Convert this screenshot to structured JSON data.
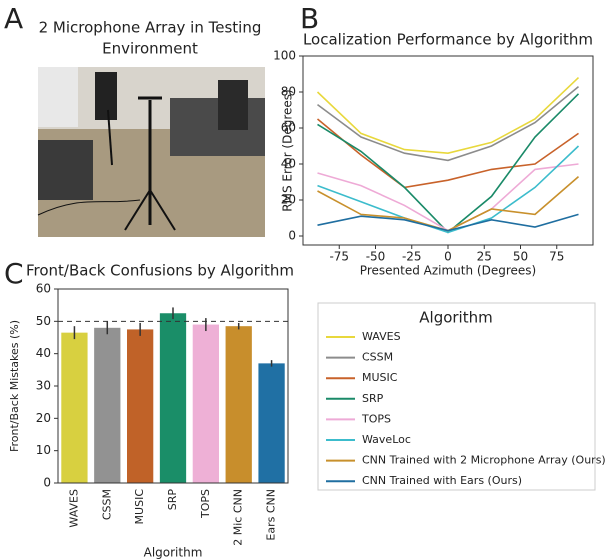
{
  "panel_labels": [
    "A",
    "B",
    "C"
  ],
  "photo_caption": [
    "2 Microphone Array in Testing",
    "Environment"
  ],
  "chart_data": [
    {
      "type": "line",
      "title": "Localization Performance by Algorithm",
      "x_label": "Presented Azimuth (Degrees)",
      "y_label": "RMS Error (Degrees)",
      "x": [
        -90,
        -60,
        -30,
        0,
        30,
        60,
        90
      ],
      "xlim": [
        -100,
        100
      ],
      "xticks": [
        -75,
        -50,
        -25,
        0,
        25,
        50,
        75
      ],
      "ylim": [
        -5,
        100
      ],
      "yticks": [
        0,
        20,
        40,
        60,
        80,
        100
      ],
      "legend_title": "Algorithm",
      "series": [
        {
          "name": "WAVES",
          "color": "#e8d83c",
          "values": [
            80,
            57,
            48,
            46,
            52,
            65,
            88
          ]
        },
        {
          "name": "CSSM",
          "color": "#8c8c8c",
          "values": [
            73,
            55,
            46,
            42,
            50,
            63,
            83
          ]
        },
        {
          "name": "MUSIC",
          "color": "#c8622a",
          "values": [
            65,
            45,
            27,
            31,
            37,
            40,
            57
          ]
        },
        {
          "name": "SRP",
          "color": "#1a8a68",
          "values": [
            62,
            47,
            27,
            2,
            22,
            55,
            79
          ]
        },
        {
          "name": "TOPS",
          "color": "#eeaad6",
          "values": [
            35,
            28,
            17,
            3,
            15,
            37,
            40
          ]
        },
        {
          "name": "WaveLoc",
          "color": "#3cbccc",
          "values": [
            28,
            19,
            10,
            2,
            10,
            27,
            50
          ]
        },
        {
          "name": "CNN Trained with 2 Microphone Array (Ours)",
          "color": "#c8902c",
          "values": [
            25,
            12,
            10,
            3,
            15,
            12,
            33
          ]
        },
        {
          "name": "CNN Trained with Ears (Ours)",
          "color": "#1f6ea0",
          "values": [
            6,
            11,
            9,
            3,
            9,
            5,
            12
          ]
        }
      ]
    },
    {
      "type": "bar",
      "title": "Front/Back Confusions by Algorithm",
      "x_label": "Algorithm",
      "y_label": "Front/Back Mistakes (%)",
      "categories": [
        "WAVES",
        "CSSM",
        "MUSIC",
        "SRP",
        "TOPS",
        "2 Mic CNN",
        "Ears CNN"
      ],
      "values": [
        46.5,
        48,
        47.5,
        52.5,
        49,
        48.5,
        37
      ],
      "errors": [
        2,
        2,
        2,
        1.8,
        2,
        1,
        1
      ],
      "colors": [
        "#d8d040",
        "#929292",
        "#c06228",
        "#1a8e68",
        "#eeb0d6",
        "#c88e2c",
        "#2070a4"
      ],
      "reference_line": 50,
      "ylim": [
        0,
        60
      ],
      "yticks": [
        0,
        10,
        20,
        30,
        40,
        50,
        60
      ]
    }
  ]
}
